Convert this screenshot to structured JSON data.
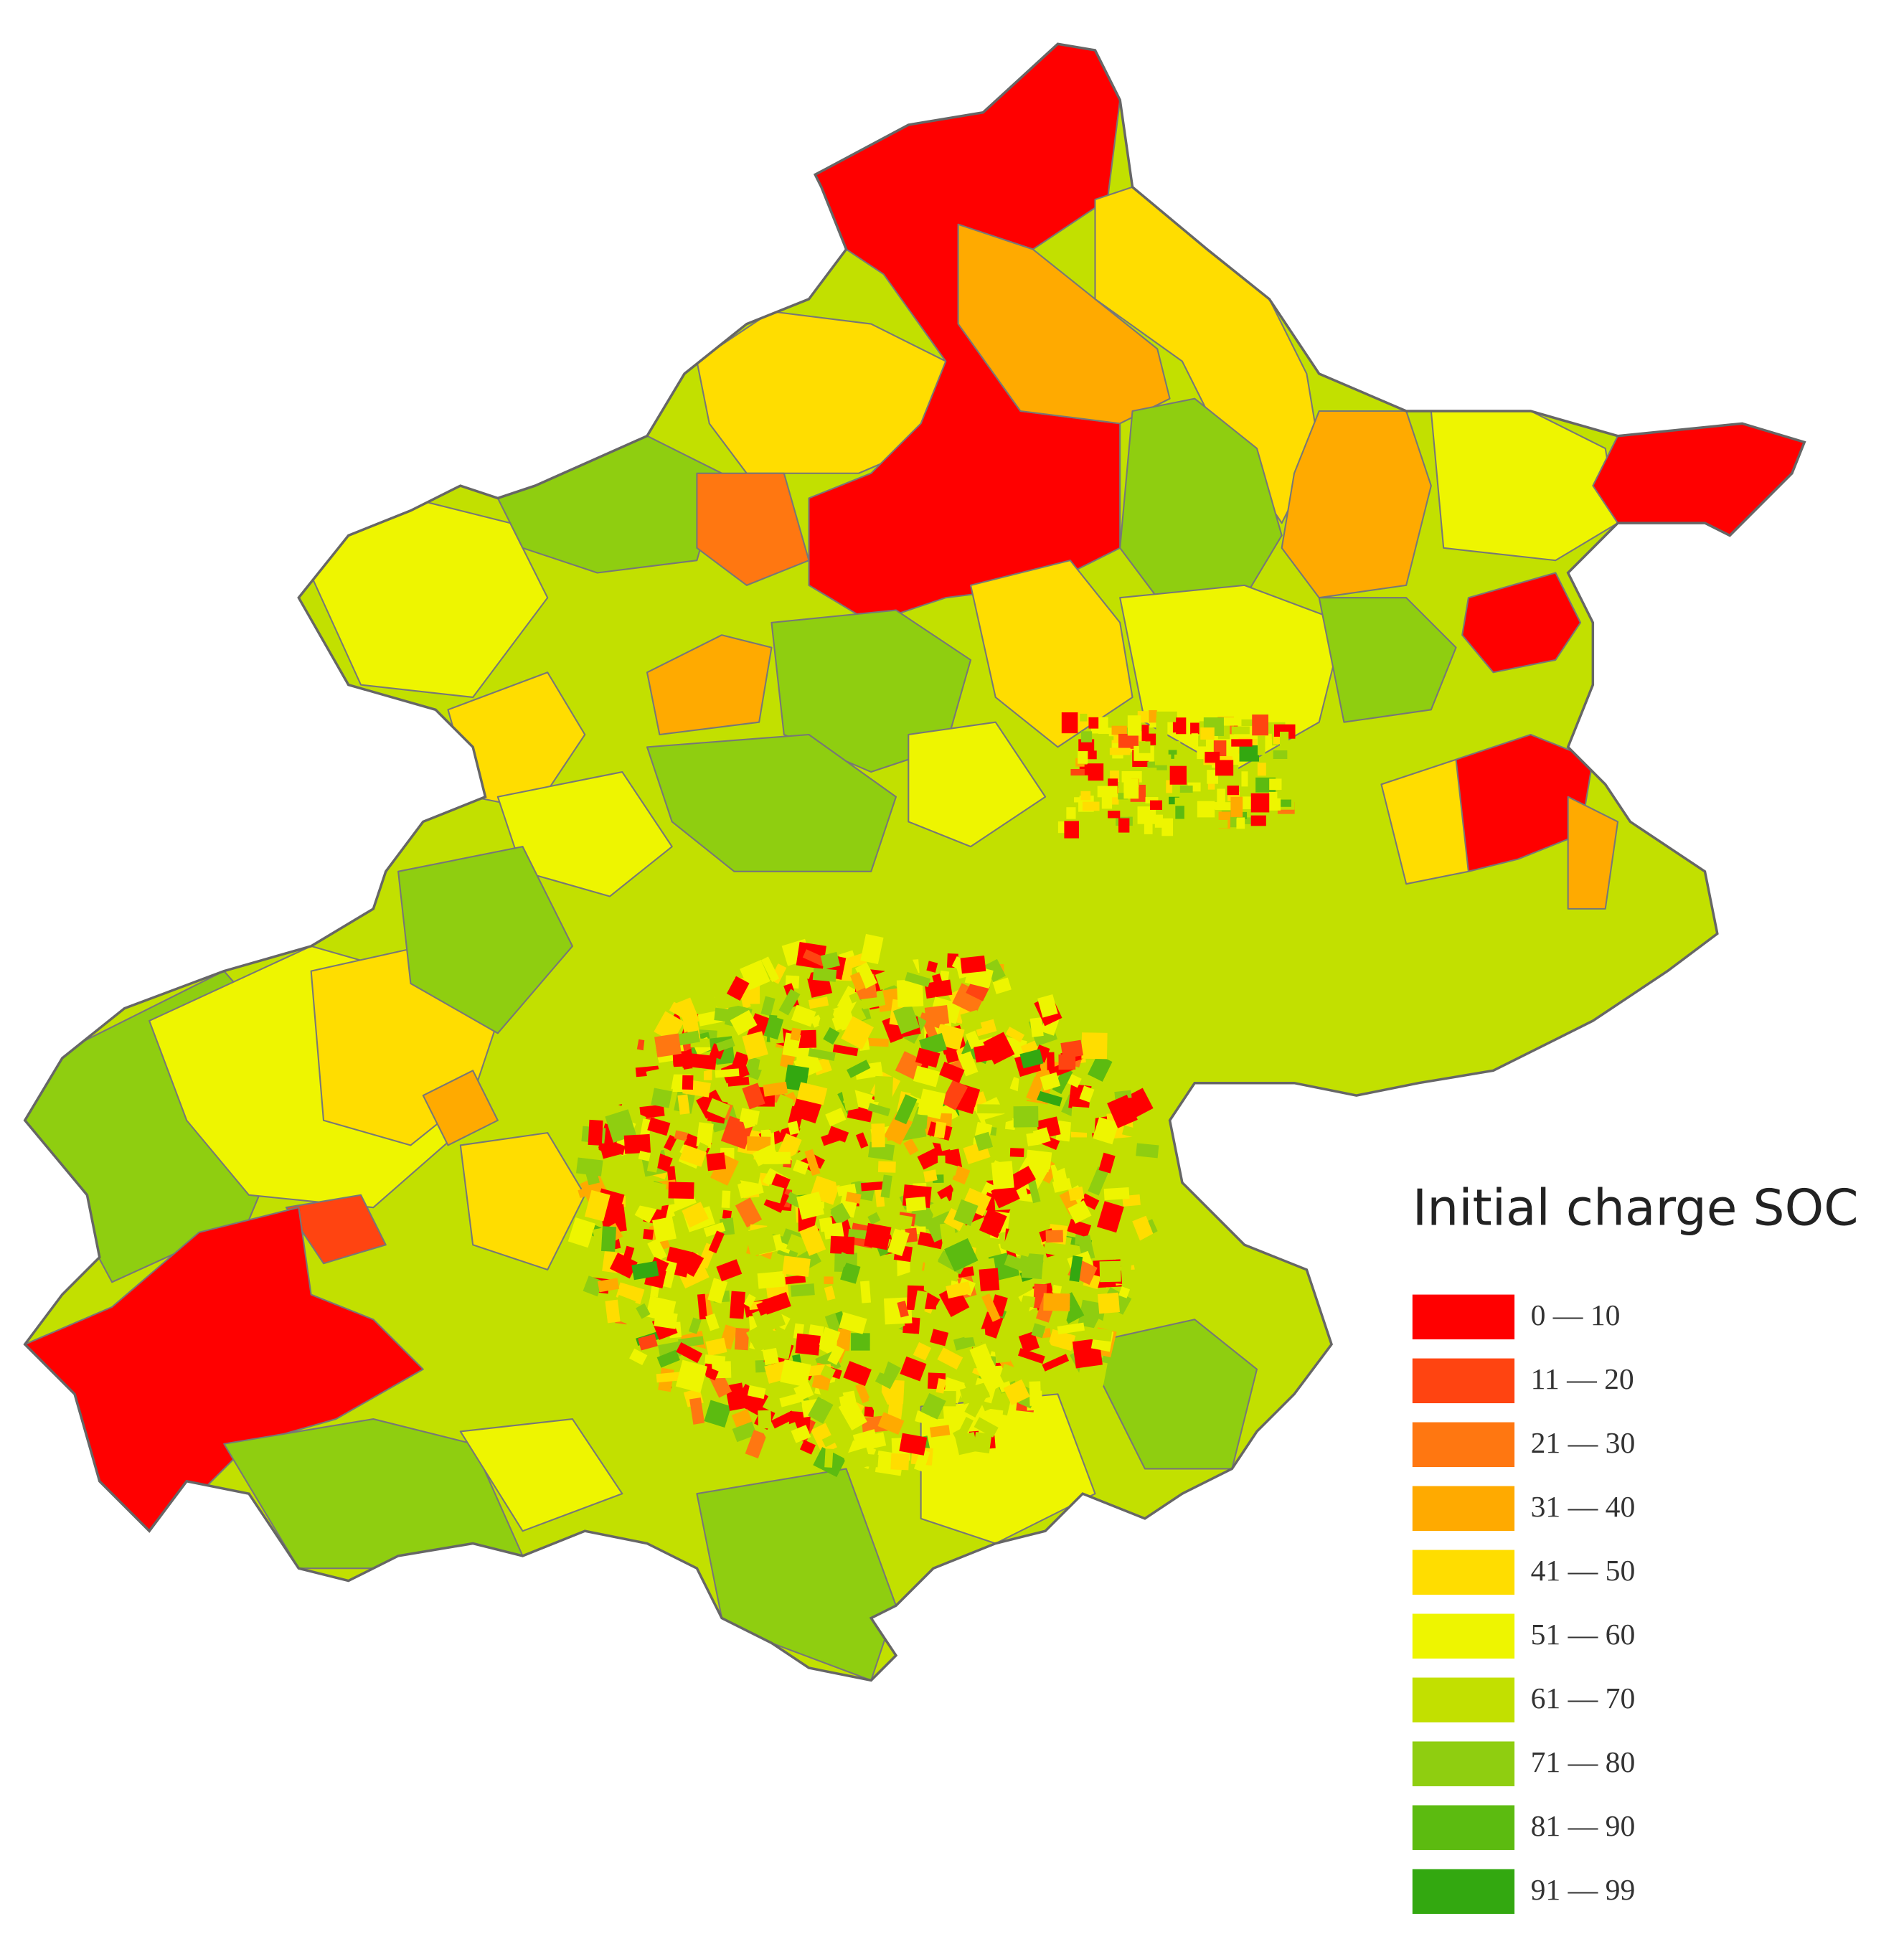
{
  "legend": {
    "title": "Initial charge SOC",
    "items": [
      {
        "label": "0 — 10",
        "color": "#ff0000"
      },
      {
        "label": "11 — 20",
        "color": "#ff4411"
      },
      {
        "label": "21 — 30",
        "color": "#ff7711"
      },
      {
        "label": "31 — 40",
        "color": "#ffaa00"
      },
      {
        "label": "41 — 50",
        "color": "#ffdd00"
      },
      {
        "label": "51 — 60",
        "color": "#eef500"
      },
      {
        "label": "61 — 70",
        "color": "#c2e000"
      },
      {
        "label": "71 — 80",
        "color": "#8fce10"
      },
      {
        "label": "81 — 90",
        "color": "#5cbb10"
      },
      {
        "label": "91 — 99",
        "color": "#33a810"
      }
    ]
  }
}
